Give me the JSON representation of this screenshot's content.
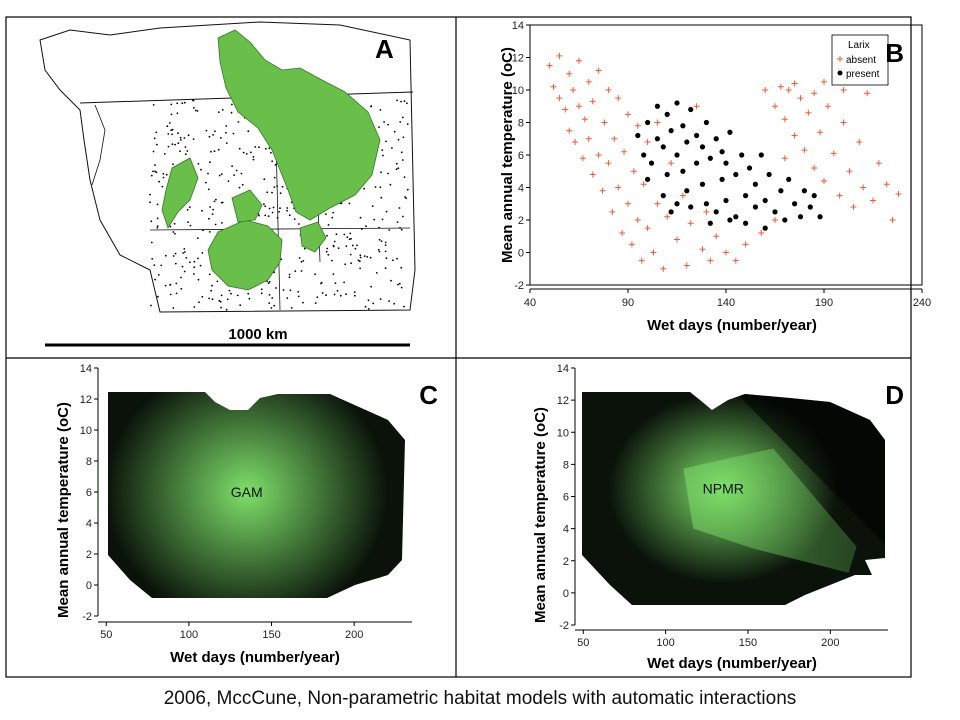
{
  "caption": "2006, MccCune, Non-parametric habitat models with automatic interactions",
  "colors": {
    "absent": "#ee5a3a",
    "present": "#000000",
    "map_land": "#ffffff",
    "map_range": "#6abf4b",
    "habitat_high": "#7ee06a",
    "habitat_low": "#0a120a"
  },
  "panels": {
    "A": {
      "letter": "A",
      "scale_label": "1000 km",
      "content": "map of Larix occurrence (green) with plot locations (black dots)"
    },
    "B": {
      "letter": "B"
    },
    "C": {
      "letter": "C",
      "inset": "GAM"
    },
    "D": {
      "letter": "D",
      "inset": "NPMR"
    }
  },
  "chart_data": [
    {
      "panel": "B",
      "type": "scatter",
      "xlabel": "Wet days (number/year)",
      "ylabel": "Mean annual temperature (oC)",
      "xlim": [
        40,
        240
      ],
      "ylim": [
        -2,
        14
      ],
      "xticks": [
        40,
        90,
        140,
        190,
        240
      ],
      "yticks": [
        -2,
        0,
        2,
        4,
        6,
        8,
        10,
        12,
        14
      ],
      "legend": {
        "title": "Larix",
        "position": "top-right",
        "entries": [
          "absent",
          "present"
        ]
      },
      "series": [
        {
          "name": "absent",
          "marker": "plus",
          "points": [
            [
              50,
              11.5
            ],
            [
              52,
              10.2
            ],
            [
              55,
              9.5
            ],
            [
              55,
              12.1
            ],
            [
              58,
              8.8
            ],
            [
              60,
              11.0
            ],
            [
              60,
              7.5
            ],
            [
              62,
              10.0
            ],
            [
              63,
              6.8
            ],
            [
              65,
              9.0
            ],
            [
              65,
              11.8
            ],
            [
              67,
              5.8
            ],
            [
              68,
              8.2
            ],
            [
              70,
              10.5
            ],
            [
              70,
              7.0
            ],
            [
              72,
              4.8
            ],
            [
              72,
              9.3
            ],
            [
              75,
              6.0
            ],
            [
              75,
              11.2
            ],
            [
              77,
              3.8
            ],
            [
              78,
              8.0
            ],
            [
              80,
              5.5
            ],
            [
              80,
              10.0
            ],
            [
              82,
              2.5
            ],
            [
              83,
              7.0
            ],
            [
              85,
              4.0
            ],
            [
              85,
              9.5
            ],
            [
              87,
              1.2
            ],
            [
              88,
              6.2
            ],
            [
              90,
              3.0
            ],
            [
              90,
              8.5
            ],
            [
              92,
              0.5
            ],
            [
              93,
              5.0
            ],
            [
              95,
              2.0
            ],
            [
              95,
              7.8
            ],
            [
              97,
              -0.5
            ],
            [
              98,
              4.2
            ],
            [
              100,
              1.5
            ],
            [
              100,
              6.8
            ],
            [
              103,
              0.0
            ],
            [
              105,
              3.0
            ],
            [
              105,
              8.0
            ],
            [
              108,
              -1.0
            ],
            [
              110,
              2.2
            ],
            [
              112,
              5.5
            ],
            [
              115,
              0.8
            ],
            [
              118,
              3.5
            ],
            [
              120,
              -0.8
            ],
            [
              122,
              1.8
            ],
            [
              125,
              9.0
            ],
            [
              128,
              0.2
            ],
            [
              130,
              2.5
            ],
            [
              132,
              -0.5
            ],
            [
              135,
              1.0
            ],
            [
              140,
              0.0
            ],
            [
              145,
              -0.5
            ],
            [
              150,
              0.5
            ],
            [
              158,
              1.2
            ],
            [
              165,
              2.0
            ],
            [
              160,
              10.0
            ],
            [
              165,
              9.0
            ],
            [
              168,
              10.2
            ],
            [
              170,
              8.2
            ],
            [
              172,
              10.0
            ],
            [
              175,
              7.2
            ],
            [
              178,
              9.5
            ],
            [
              180,
              6.3
            ],
            [
              182,
              8.6
            ],
            [
              185,
              5.2
            ],
            [
              188,
              7.4
            ],
            [
              190,
              4.4
            ],
            [
              192,
              9.0
            ],
            [
              195,
              6.1
            ],
            [
              198,
              3.5
            ],
            [
              200,
              8.0
            ],
            [
              203,
              5.0
            ],
            [
              205,
              2.8
            ],
            [
              208,
              6.8
            ],
            [
              210,
              4.0
            ],
            [
              212,
              9.8
            ],
            [
              215,
              3.2
            ],
            [
              218,
              5.5
            ],
            [
              222,
              4.2
            ],
            [
              225,
              2.0
            ],
            [
              228,
              3.6
            ],
            [
              200,
              10.0
            ],
            [
              190,
              10.5
            ],
            [
              185,
              9.8
            ],
            [
              175,
              10.4
            ],
            [
              170,
              5.8
            ]
          ]
        },
        {
          "name": "present",
          "marker": "circle",
          "points": [
            [
              95,
              7.2
            ],
            [
              98,
              6.0
            ],
            [
              100,
              8.0
            ],
            [
              102,
              5.5
            ],
            [
              105,
              7.0
            ],
            [
              105,
              9.0
            ],
            [
              108,
              6.5
            ],
            [
              110,
              4.8
            ],
            [
              110,
              8.5
            ],
            [
              112,
              7.5
            ],
            [
              115,
              6.0
            ],
            [
              115,
              9.2
            ],
            [
              118,
              5.0
            ],
            [
              118,
              7.8
            ],
            [
              120,
              3.8
            ],
            [
              120,
              6.8
            ],
            [
              122,
              8.8
            ],
            [
              125,
              5.5
            ],
            [
              125,
              7.2
            ],
            [
              128,
              4.2
            ],
            [
              128,
              6.5
            ],
            [
              130,
              3.0
            ],
            [
              130,
              8.0
            ],
            [
              132,
              5.8
            ],
            [
              135,
              2.5
            ],
            [
              135,
              7.0
            ],
            [
              138,
              4.5
            ],
            [
              138,
              6.2
            ],
            [
              140,
              3.2
            ],
            [
              140,
              5.5
            ],
            [
              142,
              7.4
            ],
            [
              145,
              2.2
            ],
            [
              145,
              4.8
            ],
            [
              148,
              6.0
            ],
            [
              150,
              3.5
            ],
            [
              150,
              1.8
            ],
            [
              152,
              5.2
            ],
            [
              155,
              2.8
            ],
            [
              155,
              4.2
            ],
            [
              158,
              6.0
            ],
            [
              160,
              3.2
            ],
            [
              160,
              1.5
            ],
            [
              162,
              4.8
            ],
            [
              165,
              2.5
            ],
            [
              168,
              3.8
            ],
            [
              170,
              2.0
            ],
            [
              172,
              4.5
            ],
            [
              175,
              3.0
            ],
            [
              178,
              2.2
            ],
            [
              180,
              3.8
            ],
            [
              183,
              2.8
            ],
            [
              185,
              3.5
            ],
            [
              188,
              2.2
            ],
            [
              100,
              4.5
            ],
            [
              108,
              3.5
            ],
            [
              112,
              2.5
            ],
            [
              115,
              3.0
            ],
            [
              122,
              2.8
            ],
            [
              132,
              1.8
            ],
            [
              142,
              2.0
            ]
          ]
        }
      ]
    },
    {
      "panel": "C",
      "type": "heatmap",
      "xlabel": "Wet days (number/year)",
      "ylabel": "Mean annual temperature (oC)",
      "xlim": [
        45,
        235
      ],
      "ylim": [
        -2,
        14
      ],
      "xticks": [
        50,
        100,
        150,
        200
      ],
      "yticks": [
        -2,
        0,
        2,
        4,
        6,
        8,
        10,
        12,
        14
      ],
      "label": "GAM",
      "peak": {
        "x": 135,
        "y": 6.0
      },
      "spread": {
        "x": 45,
        "y": 4.5
      },
      "intensity_range": [
        0,
        1
      ]
    },
    {
      "panel": "D",
      "type": "heatmap",
      "xlabel": "Wet days (number/year)",
      "ylabel": "Mean annual temperature (oC)",
      "xlim": [
        45,
        235
      ],
      "ylim": [
        -2,
        14
      ],
      "xticks": [
        50,
        100,
        150,
        200
      ],
      "yticks": [
        -2,
        0,
        2,
        4,
        6,
        8,
        10,
        12,
        14
      ],
      "label": "NPMR",
      "peak": {
        "x": 135,
        "y": 6.5
      },
      "ridge_end": {
        "x": 205,
        "y": 2.0
      },
      "intensity_range": [
        0,
        1
      ]
    }
  ]
}
